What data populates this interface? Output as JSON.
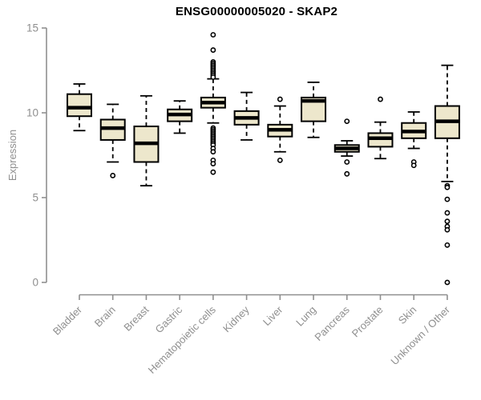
{
  "chart_data": {
    "type": "boxplot",
    "title": "ENSG00000005020 - SKAP2",
    "xlabel": "",
    "ylabel": "Expression",
    "ylim": [
      0,
      15
    ],
    "yticks": [
      0,
      5,
      10,
      15
    ],
    "grid": false,
    "legend": "none",
    "colors": {
      "box_fill": "#EDE7CC",
      "box_stroke": "#000000",
      "median": "#000000",
      "axis": "#8f8f8f",
      "tick_label": "#8f8f8f",
      "title": "#000000",
      "background": "#ffffff"
    },
    "categories": [
      "Bladder",
      "Brain",
      "Breast",
      "Gastric",
      "Hematopoietic cells",
      "Kidney",
      "Liver",
      "Lung",
      "Pancreas",
      "Prostate",
      "Skin",
      "Unknown / Other"
    ],
    "boxes": [
      {
        "category": "Bladder",
        "whisker_low": 8.95,
        "q1": 9.8,
        "median": 10.3,
        "q3": 11.1,
        "whisker_high": 11.7,
        "outliers": []
      },
      {
        "category": "Brain",
        "whisker_low": 7.1,
        "q1": 8.4,
        "median": 9.1,
        "q3": 9.6,
        "whisker_high": 10.5,
        "outliers": [
          6.3
        ]
      },
      {
        "category": "Breast",
        "whisker_low": 5.7,
        "q1": 7.1,
        "median": 8.2,
        "q3": 9.2,
        "whisker_high": 11.0,
        "outliers": []
      },
      {
        "category": "Gastric",
        "whisker_low": 8.8,
        "q1": 9.5,
        "median": 9.9,
        "q3": 10.2,
        "whisker_high": 10.7,
        "outliers": []
      },
      {
        "category": "Hematopoietic cells",
        "whisker_low": 9.4,
        "q1": 10.3,
        "median": 10.6,
        "q3": 10.9,
        "whisker_high": 12.0,
        "outliers": [
          14.6,
          13.7,
          13.0,
          12.9,
          12.8,
          12.7,
          12.6,
          12.5,
          12.4,
          12.3,
          12.2,
          12.1,
          9.1,
          9.0,
          8.9,
          8.8,
          8.7,
          8.6,
          8.5,
          8.4,
          8.3,
          8.2,
          8.1,
          7.9,
          7.7,
          7.2,
          7.0,
          6.5
        ]
      },
      {
        "category": "Kidney",
        "whisker_low": 8.4,
        "q1": 9.3,
        "median": 9.7,
        "q3": 10.1,
        "whisker_high": 11.2,
        "outliers": []
      },
      {
        "category": "Liver",
        "whisker_low": 7.7,
        "q1": 8.6,
        "median": 9.0,
        "q3": 9.3,
        "whisker_high": 10.4,
        "outliers": [
          10.8,
          7.2
        ]
      },
      {
        "category": "Lung",
        "whisker_low": 8.55,
        "q1": 9.5,
        "median": 10.7,
        "q3": 10.9,
        "whisker_high": 11.8,
        "outliers": []
      },
      {
        "category": "Pancreas",
        "whisker_low": 7.45,
        "q1": 7.7,
        "median": 7.9,
        "q3": 8.1,
        "whisker_high": 8.35,
        "outliers": [
          9.5,
          7.1,
          6.4
        ]
      },
      {
        "category": "Prostate",
        "whisker_low": 7.3,
        "q1": 8.0,
        "median": 8.5,
        "q3": 8.8,
        "whisker_high": 9.45,
        "outliers": [
          10.8
        ]
      },
      {
        "category": "Skin",
        "whisker_low": 7.9,
        "q1": 8.5,
        "median": 8.9,
        "q3": 9.4,
        "whisker_high": 10.05,
        "outliers": [
          7.1,
          6.9
        ]
      },
      {
        "category": "Unknown / Other",
        "whisker_low": 5.95,
        "q1": 8.5,
        "median": 9.5,
        "q3": 10.4,
        "whisker_high": 12.8,
        "outliers": [
          5.7,
          5.6,
          4.9,
          4.1,
          3.6,
          3.3,
          3.1,
          2.2,
          0.0
        ]
      }
    ]
  }
}
